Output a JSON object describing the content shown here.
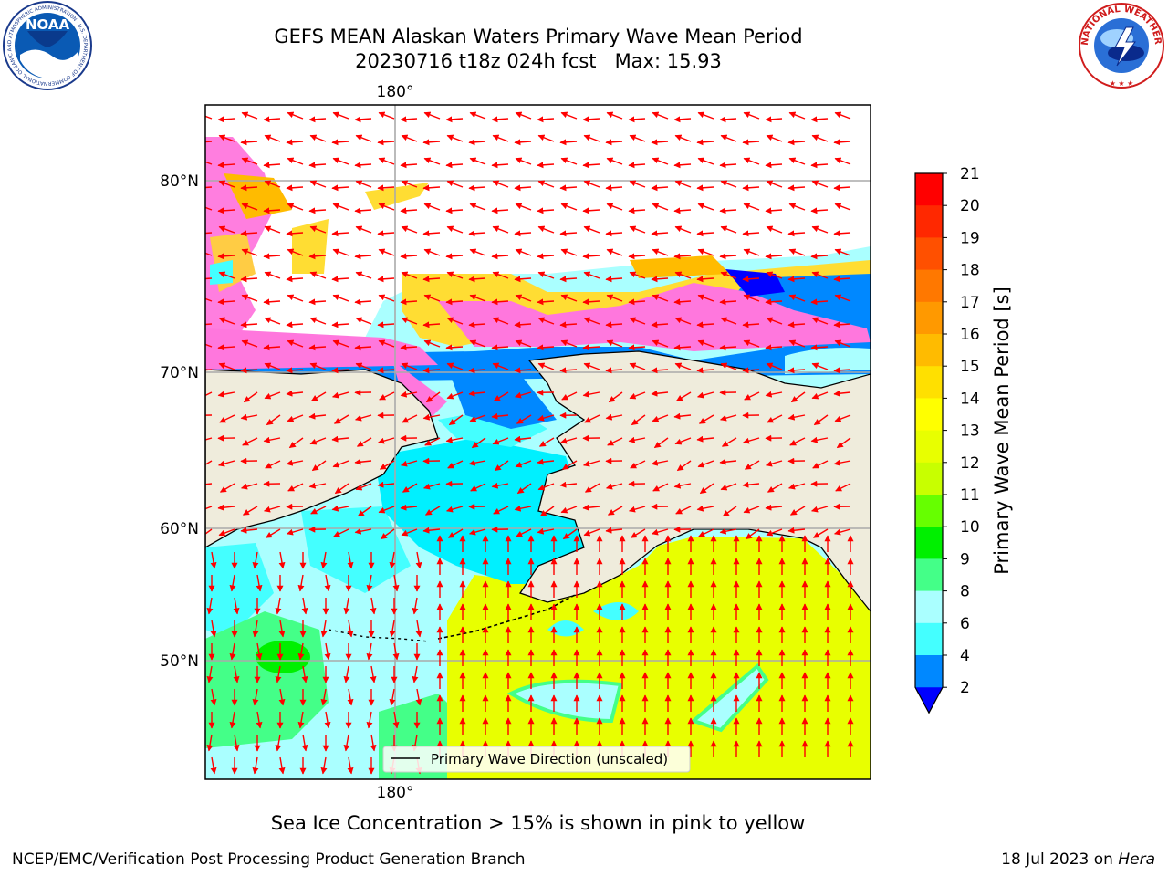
{
  "title": {
    "line1": "GEFS MEAN Alaskan Waters Primary Wave Mean Period",
    "line2": "20230716 t18z 024h fcst   Max: 15.93"
  },
  "map": {
    "top_lon_label": "180°",
    "bottom_lon_label": "180°",
    "lat_labels": [
      "80°N",
      "70°N",
      "60°N",
      "50°N"
    ],
    "legend_label": "Primary Wave Direction (unscaled)"
  },
  "colorbar": {
    "label": "Primary Wave Mean Period [s]",
    "ticks": [
      "21",
      "20",
      "19",
      "18",
      "17",
      "16",
      "15",
      "14",
      "13",
      "12",
      "11",
      "10",
      "9",
      "8",
      "6",
      "4",
      "2"
    ],
    "colors": [
      "#ff0000",
      "#ff2800",
      "#ff5000",
      "#ff7800",
      "#ff9900",
      "#ffbb00",
      "#ffe000",
      "#ffff00",
      "#e8ff00",
      "#c8ff00",
      "#66ff00",
      "#00f000",
      "#44ff88",
      "#aaffff",
      "#44ffff",
      "#00f0ff",
      "#0088ff"
    ],
    "extend_color": "#0000ff"
  },
  "caption": "Sea Ice Concentration > 15% is shown in pink to yellow",
  "footer": {
    "left": "NCEP/EMC/Verification Post Processing Product Generation Branch",
    "right_date": "18 Jul 2023 on ",
    "right_machine": "Hera"
  },
  "logos": {
    "noaa_text": "NOAA",
    "noaa_ring_text": "NATIONAL OCEANIC AND ATMOSPHERIC ADMINISTRATION · U.S. DEPARTMENT OF COMMERCE ·",
    "nws_ring_text": "NATIONAL WEATHER SERVICE"
  }
}
